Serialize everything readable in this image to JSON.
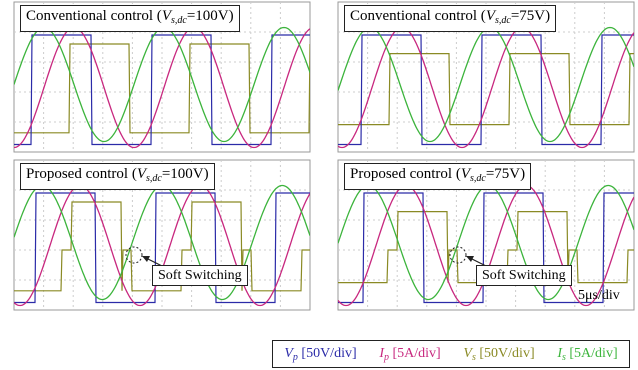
{
  "panels": [
    {
      "title": {
        "prefix": "Conventional control (",
        "symbol": "V",
        "subscript": "s,dc",
        "suffix": "=100V)"
      }
    },
    {
      "title": {
        "prefix": "Conventional control (",
        "symbol": "V",
        "subscript": "s,dc",
        "suffix": "=75V)"
      }
    },
    {
      "title": {
        "prefix": "Proposed control (",
        "symbol": "V",
        "subscript": "s,dc",
        "suffix": "=100V)"
      },
      "annotation": "Soft Switching"
    },
    {
      "title": {
        "prefix": "Proposed control (",
        "symbol": "V",
        "subscript": "s,dc",
        "suffix": "=75V)"
      },
      "annotation": "Soft Switching",
      "time_scale": "5μs/div"
    }
  ],
  "legend": [
    {
      "symbol": "V",
      "subscript": "p",
      "scale": "[50V/div]",
      "color": "#2b2ba8"
    },
    {
      "symbol": "I",
      "subscript": "p",
      "scale": "[5A/div]",
      "color": "#c8287f"
    },
    {
      "symbol": "V",
      "subscript": "s",
      "scale": "[50V/div]",
      "color": "#8a8a24"
    },
    {
      "symbol": "I",
      "subscript": "s",
      "scale": "[5A/div]",
      "color": "#3cb43c"
    }
  ]
}
